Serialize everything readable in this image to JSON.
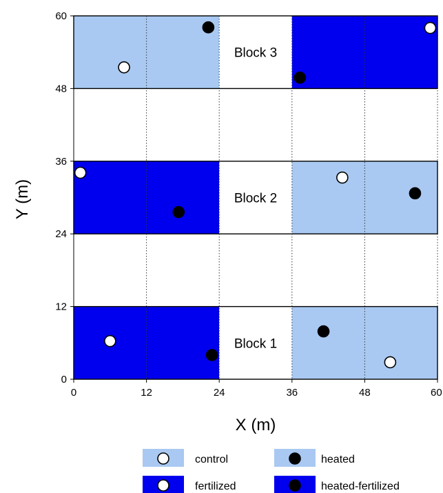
{
  "chart_data": {
    "type": "scatter",
    "xlabel": "X (m)",
    "ylabel": "Y (m)",
    "xlim": [
      0,
      60
    ],
    "ylim": [
      0,
      60
    ],
    "xticks": [
      "0",
      "12",
      "24",
      "36",
      "48",
      "60"
    ],
    "yticks": [
      "0",
      "12",
      "24",
      "36",
      "48",
      "60"
    ],
    "grid": "dotted vertical lines at each x tick",
    "blocks": [
      {
        "label": "Block 1",
        "y0": 0,
        "y1": 12,
        "plots": [
          {
            "x0": 0,
            "x1": 24,
            "treatment": "fertilized"
          },
          {
            "x0": 24,
            "x1": 36,
            "treatment": "unplanted"
          },
          {
            "x0": 36,
            "x1": 60,
            "treatment": "heated"
          }
        ]
      },
      {
        "label": "Block 2",
        "y0": 24,
        "y1": 36,
        "plots": [
          {
            "x0": 0,
            "x1": 24,
            "treatment": "fertilized"
          },
          {
            "x0": 24,
            "x1": 36,
            "treatment": "unplanted"
          },
          {
            "x0": 36,
            "x1": 60,
            "treatment": "heated"
          }
        ]
      },
      {
        "label": "Block 3",
        "y0": 48,
        "y1": 60,
        "plots": [
          {
            "x0": 0,
            "x1": 24,
            "treatment": "heated"
          },
          {
            "x0": 24,
            "x1": 36,
            "treatment": "unplanted"
          },
          {
            "x0": 36,
            "x1": 60,
            "treatment": "fertilized"
          }
        ]
      }
    ],
    "points": [
      {
        "x": 6.0,
        "y": 6.3,
        "marker": "open"
      },
      {
        "x": 22.8,
        "y": 4.0,
        "marker": "filled"
      },
      {
        "x": 41.2,
        "y": 7.9,
        "marker": "filled"
      },
      {
        "x": 52.2,
        "y": 2.8,
        "marker": "open"
      },
      {
        "x": 1.1,
        "y": 34.1,
        "marker": "open"
      },
      {
        "x": 17.3,
        "y": 27.6,
        "marker": "filled"
      },
      {
        "x": 44.3,
        "y": 33.3,
        "marker": "open"
      },
      {
        "x": 56.3,
        "y": 30.7,
        "marker": "filled"
      },
      {
        "x": 8.3,
        "y": 51.5,
        "marker": "open"
      },
      {
        "x": 22.2,
        "y": 58.1,
        "marker": "filled"
      },
      {
        "x": 37.3,
        "y": 49.8,
        "marker": "filled"
      },
      {
        "x": 58.8,
        "y": 58.0,
        "marker": "open"
      }
    ],
    "legend": {
      "placement": "bottom",
      "entries": [
        {
          "label": "control",
          "fill": "#a9c9f2",
          "marker": "open"
        },
        {
          "label": "heated",
          "fill": "#a9c9f2",
          "marker": "filled"
        },
        {
          "label": "fertilized",
          "fill": "#0000ee",
          "marker": "open"
        },
        {
          "label": "heated-fertilized",
          "fill": "#0000ee",
          "marker": "filled"
        }
      ]
    },
    "colors": {
      "heated": "#a9c9f2",
      "fertilized": "#0000ee",
      "unplanted": "#ffffff"
    }
  }
}
